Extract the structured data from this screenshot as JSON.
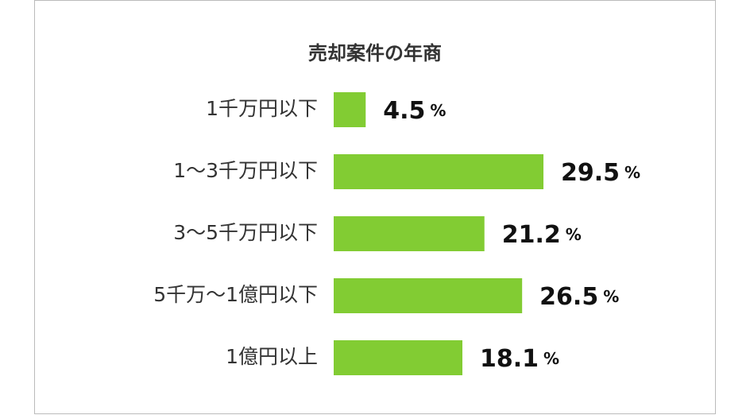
{
  "chart_data": {
    "type": "bar",
    "orientation": "horizontal",
    "title": "売却案件の年商",
    "categories": [
      "1千万円以下",
      "1～3千万円以下",
      "3～5千万円以下",
      "5千万～1億円以下",
      "1億円以上"
    ],
    "values": [
      4.5,
      29.5,
      21.2,
      26.5,
      18.1
    ],
    "unit": "%",
    "color": "#82cc33"
  }
}
